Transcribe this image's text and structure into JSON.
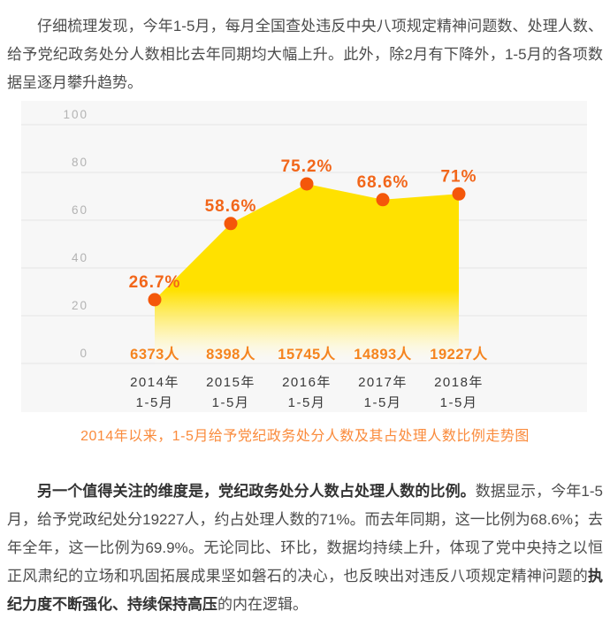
{
  "colors": {
    "dot_orange": "#f4570a",
    "pct_label_orange": "#f2661a",
    "count_label_orange": "#f5841f",
    "area_yellow_top": "#ffe100",
    "area_yellow_fade": "#fff6c0",
    "panel_bg": "#f7f7f7",
    "grid_line": "#e4e4e4",
    "tick_text": "#b3b3b3",
    "year_text": "#3b3b3b",
    "caption_orange": "#fa8b3c",
    "body_text": "#4c4c4c",
    "bold_text": "#333333"
  },
  "paragraph1": {
    "text": "仔细梳理发现，今年1-5月，每月全国查处违反中央八项规定精神问题数、处理人数、给予党纪政务处分人数相比去年同期均大幅上升。此外，除2月有下降外，1-5月的各项数据呈逐月攀升趋势。"
  },
  "chart_data": {
    "type": "area",
    "title": "2014年以来，1-5月给予党纪政务处分人数及其占处理人数比例走势图",
    "categories": [
      "2014年 1-5月",
      "2015年 1-5月",
      "2016年 1-5月",
      "2017年 1-5月",
      "2018年 1-5月"
    ],
    "series": [
      {
        "name": "给予党纪政务处分人数占处理人数比例",
        "unit": "%",
        "values": [
          26.7,
          58.6,
          75.2,
          68.6,
          71
        ],
        "labels": [
          "26.7%",
          "58.6%",
          "75.2%",
          "68.6%",
          "71%"
        ]
      },
      {
        "name": "给予党纪政务处分人数",
        "unit": "人",
        "values": [
          6373,
          8398,
          15745,
          14893,
          19227
        ],
        "labels": [
          "6373人",
          "8398人",
          "15745人",
          "14893人",
          "19227人"
        ]
      }
    ],
    "yticks": [
      100,
      80,
      60,
      40,
      20,
      0
    ],
    "ylim": [
      0,
      110
    ],
    "grid": true,
    "legend": false
  },
  "paragraph2": {
    "bold_lead": "另一个值得关注的维度是，党纪政务处分人数占处理人数的比例。",
    "text_mid": "数据显示，今年1-5月，给予党政纪处分19227人，约占处理人数的71%。而去年同期，这一比例为68.6%；去年全年，这一比例为69.9%。无论同比、环比，数据均持续上升，体现了党中央持之以恒正风肃纪的立场和巩固拓展成果坚如磐石的决心，也反映出对违反八项规定精神问题的",
    "bold_mid": "执纪力度不断强化、持续保持高压",
    "text_end": "的内在逻辑。"
  }
}
